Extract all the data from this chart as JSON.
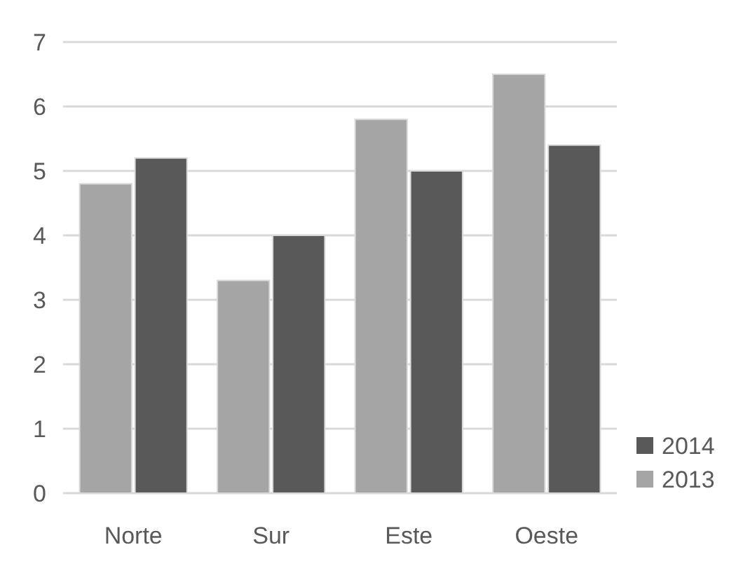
{
  "chart_data": {
    "type": "bar",
    "categories": [
      "Norte",
      "Sur",
      "Este",
      "Oeste"
    ],
    "series": [
      {
        "name": "2013",
        "color": "#a5a5a5",
        "values": [
          4.8,
          3.3,
          5.8,
          6.5
        ]
      },
      {
        "name": "2014",
        "color": "#595959",
        "values": [
          5.2,
          4.0,
          5.0,
          5.4
        ]
      }
    ],
    "ylim": [
      0,
      7
    ],
    "yticks": [
      0,
      1,
      2,
      3,
      4,
      5,
      6,
      7
    ],
    "grid": "y",
    "legend": "bottom right"
  }
}
